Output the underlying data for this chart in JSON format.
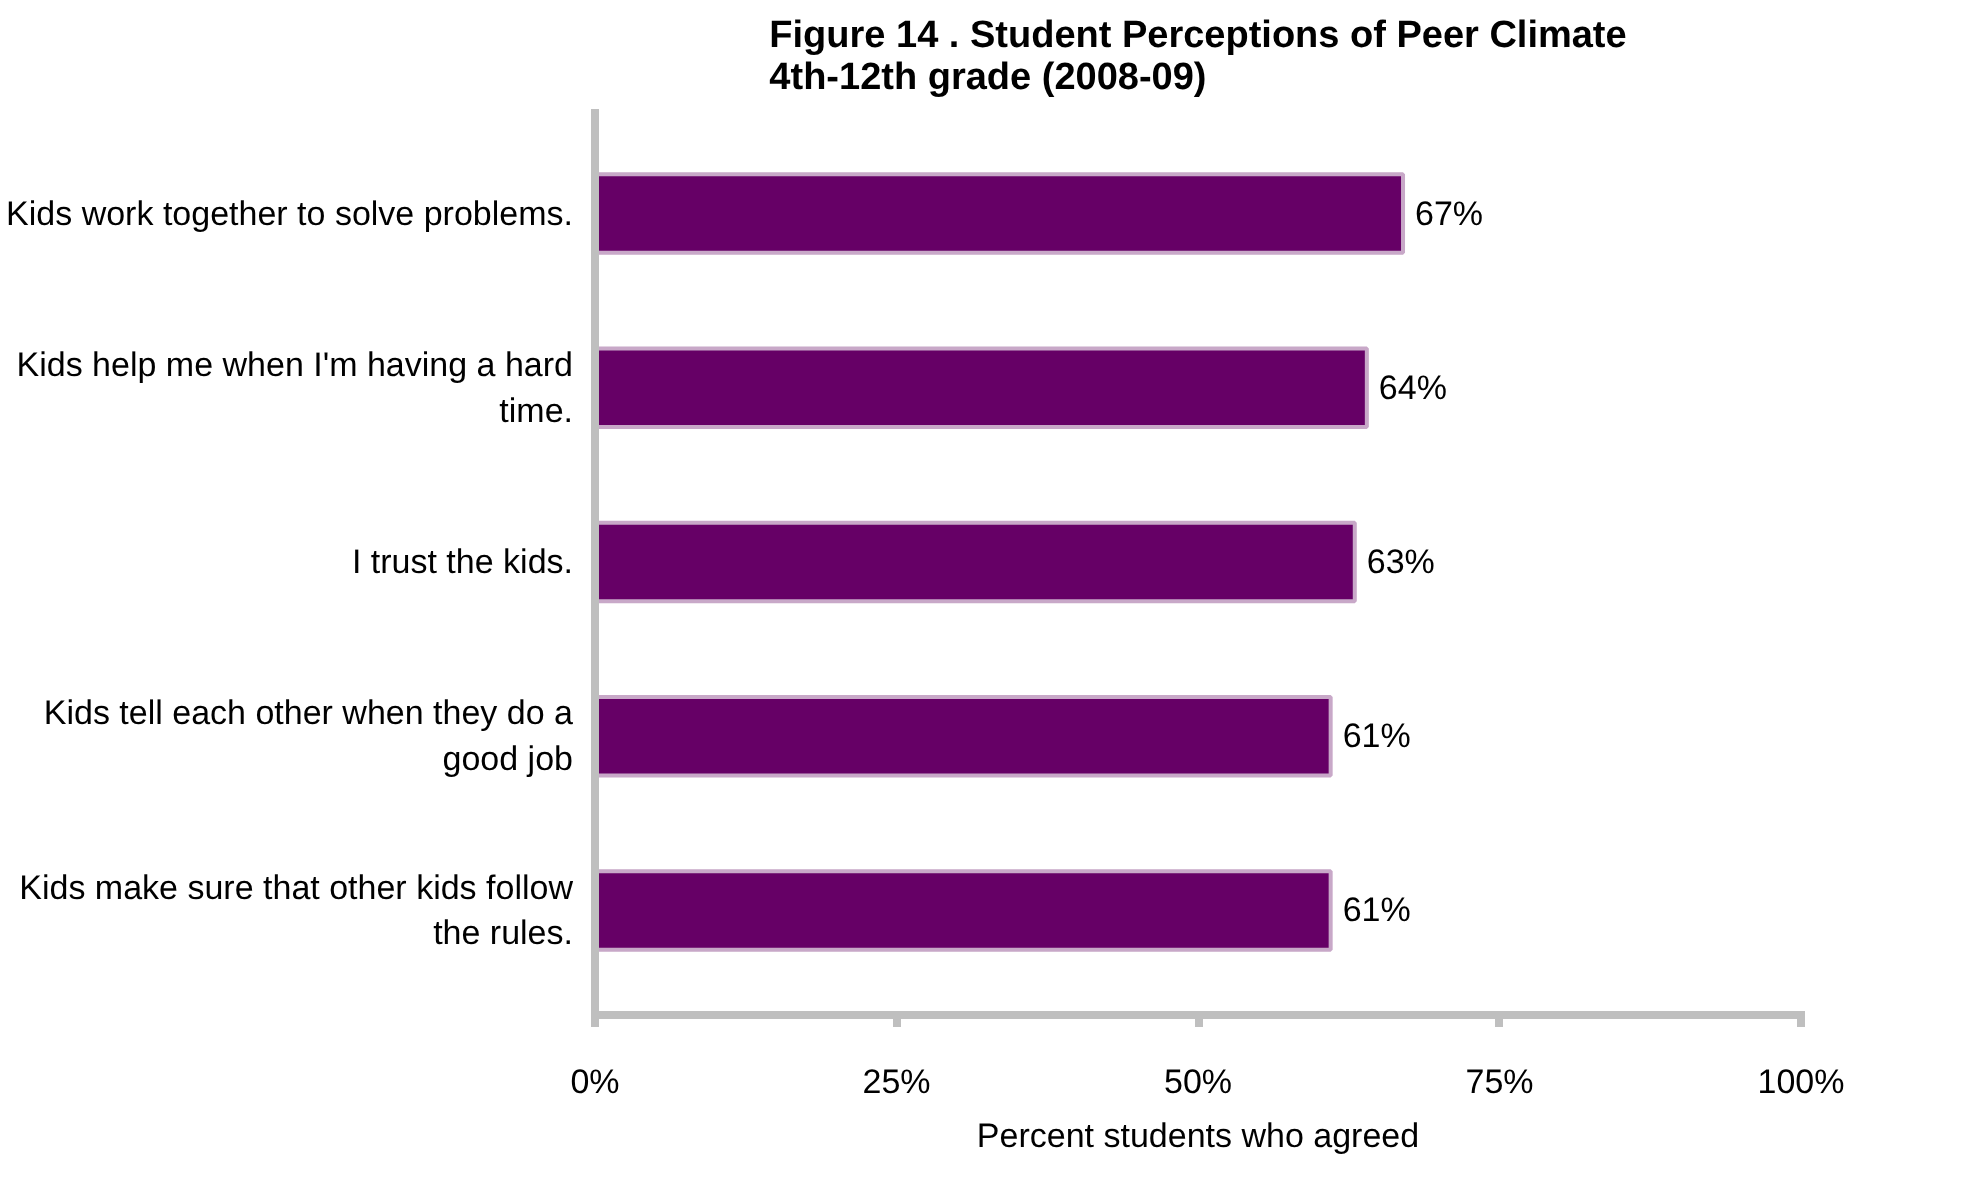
{
  "chart_data": {
    "type": "bar",
    "orientation": "horizontal",
    "title": "Figure 14 . Student Perceptions of Peer Climate\n4th-12th grade (2008-09)",
    "xlabel": "Percent students who agreed",
    "categories": [
      "Kids work together to solve problems.",
      "Kids help me when I'm having a hard time.",
      "I trust the kids.",
      "Kids tell each other when they do a good job",
      "Kids make sure that other kids follow the rules."
    ],
    "values": [
      67,
      64,
      63,
      61,
      61
    ],
    "value_labels": [
      "67%",
      "64%",
      "63%",
      "61%",
      "61%"
    ],
    "color": "#660066",
    "xlim": [
      0,
      100
    ],
    "xticks": [
      {
        "value": 0,
        "label": "0%"
      },
      {
        "value": 25,
        "label": "25%"
      },
      {
        "value": 50,
        "label": "50%"
      },
      {
        "value": 75,
        "label": "75%"
      },
      {
        "value": 100,
        "label": "100%"
      }
    ],
    "grid": false
  }
}
